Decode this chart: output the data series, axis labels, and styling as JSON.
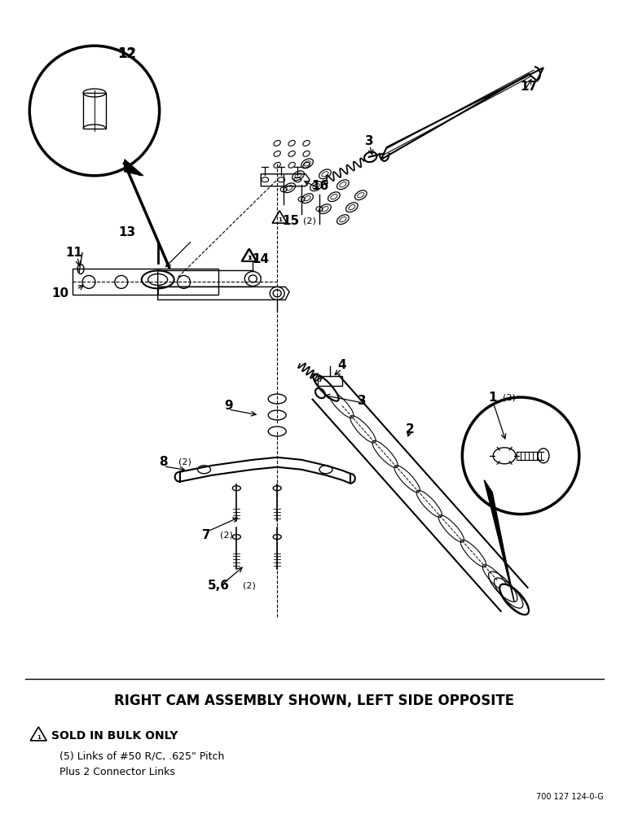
{
  "bg_color": "#ffffff",
  "title_text": "RIGHT CAM ASSEMBLY SHOWN, LEFT SIDE OPPOSITE",
  "title_fontsize": 12,
  "footnote_line1": "SOLD IN BULK ONLY",
  "footnote_line2": "(5) Links of #50 R/C, .625\" Pitch",
  "footnote_line3": "Plus 2 Connector Links",
  "part_number": "700 127 124-0-G",
  "fig_width": 7.72,
  "fig_height": 10.0,
  "dpi": 100
}
